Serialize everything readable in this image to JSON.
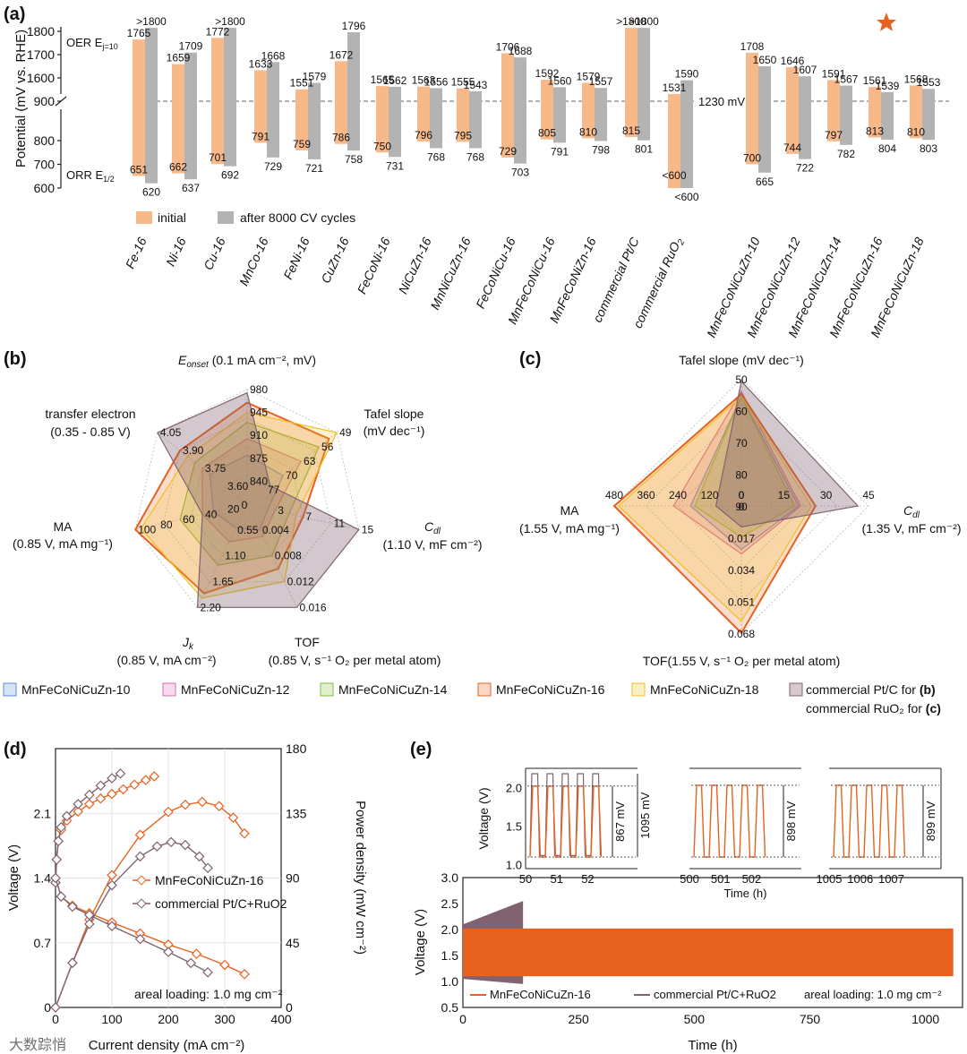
{
  "colors": {
    "initial": "#f8b98a",
    "after": "#b3b3b3",
    "orange": "#e8621f",
    "gray_series": "#806270",
    "pt_fill": "#d8c9cf",
    "cat10": "#5b8fd6",
    "cat12": "#d86fb0",
    "cat14": "#7fbf3f",
    "cat16": "#e8621f",
    "cat18": "#f0c020"
  },
  "panel_labels": {
    "a": "(a)",
    "b": "(b)",
    "c": "(c)",
    "d": "(d)",
    "e": "(e)"
  },
  "chart_data": [
    {
      "panel": "a",
      "type": "bar",
      "ylabel": "Potential (mV vs. RHE)",
      "yticks_oer": [
        "1800",
        "1700",
        "1600"
      ],
      "ytick_break": "900",
      "yticks_orr": [
        "800",
        "700",
        "600"
      ],
      "oer_label": "OER E",
      "oer_sub": "j=10",
      "orr_label": "ORR E",
      "orr_sub": "1/2",
      "ref_line_label": "1230 mV",
      "legend": {
        "initial": "initial",
        "after": "after 8000 CV cycles"
      },
      "categories": [
        "Fe-16",
        "Ni-16",
        "Cu-16",
        "MnCo-16",
        "FeNi-16",
        "CuZn-16",
        "FeCoNi-16",
        "NiCuZn-16",
        "MnNiCuZn-16",
        "FeCoNiCu-16",
        "MnFeCoNiCu-16",
        "MnFeCoNiZn-16",
        "commercial Pt/C",
        "commercial RuO2",
        "MnFeCoNiCuZn-10",
        "MnFeCoNiCuZn-12",
        "MnFeCoNiCuZn-14",
        "MnFeCoNiCuZn-16",
        "MnFeCoNiCuZn-18"
      ],
      "series": [
        {
          "name": "initial",
          "oer": [
            1765,
            1659,
            1772,
            1633,
            1551,
            1672,
            1565,
            1563,
            1555,
            1706,
            1592,
            1579,
            ">1800",
            1531,
            1708,
            1646,
            1591,
            1561,
            1568
          ],
          "orr": [
            651,
            662,
            701,
            791,
            759,
            786,
            750,
            796,
            795,
            729,
            805,
            810,
            815,
            "<600",
            700,
            744,
            797,
            813,
            810
          ]
        },
        {
          "name": "after 8000 CV cycles",
          "oer": [
            ">1800",
            1709,
            ">1800",
            1668,
            1579,
            1796,
            1562,
            1556,
            1543,
            1688,
            1560,
            1557,
            ">1800",
            1590,
            1650,
            1607,
            1567,
            1539,
            1553
          ],
          "orr": [
            620,
            637,
            692,
            729,
            721,
            758,
            731,
            768,
            768,
            703,
            791,
            798,
            801,
            "<600",
            665,
            722,
            782,
            804,
            803
          ]
        }
      ],
      "highlight": "MnFeCoNiCuZn-16"
    },
    {
      "panel": "b",
      "type": "radar",
      "axes": [
        {
          "label": "E",
          "label_sub": "onset",
          "label_rest": " (0.1 mA cm⁻², mV)",
          "ticks": [
            "840",
            "875",
            "910",
            "945",
            "980"
          ],
          "min": 805,
          "max": 980
        },
        {
          "label": "Tafel slope",
          "label2": "(mV dec⁻¹)",
          "ticks": [
            "77",
            "70",
            "63",
            "56",
            "49"
          ],
          "min": 84,
          "max": 49
        },
        {
          "label": "C",
          "label_sub": "dl",
          "label2": "(1.10 V, mF cm⁻²)",
          "ticks": [
            "3",
            "7",
            "11",
            "15"
          ],
          "min": -1,
          "max": 15
        },
        {
          "label": "TOF",
          "label2": "(0.85 V, s⁻¹ O₂ per metal atom)",
          "ticks": [
            "0.004",
            "0.008",
            "0.012",
            "0.016"
          ],
          "min": 0,
          "max": 0.016
        },
        {
          "label": "J",
          "label_sub": "k",
          "label2": "(0.85 V, mA cm⁻²)",
          "ticks": [
            "0.55",
            "1.10",
            "1.65",
            "2.20"
          ],
          "min": 0,
          "max": 2.2
        },
        {
          "label": "MA",
          "label2": "(0.85 V, mA mg⁻¹)",
          "ticks": [
            "20",
            "40",
            "60",
            "80",
            "100"
          ],
          "min": 0,
          "max": 100
        },
        {
          "label": "transfer electron",
          "label2": "(0.35 - 0.85 V)",
          "ticks": [
            "3.60",
            "3.75",
            "3.90",
            "4.05"
          ],
          "min": 3.45,
          "max": 4.05
        }
      ],
      "center_label": "0",
      "series": [
        {
          "name": "MnFeCoNiCuZn-10",
          "values": [
            880,
            70,
            2,
            0.004,
            0.5,
            30,
            3.7
          ]
        },
        {
          "name": "MnFeCoNiCuZn-12",
          "values": [
            905,
            63,
            3,
            0.005,
            0.8,
            40,
            3.75
          ]
        },
        {
          "name": "MnFeCoNiCuZn-14",
          "values": [
            930,
            56,
            5,
            0.008,
            1.3,
            60,
            3.8
          ]
        },
        {
          "name": "MnFeCoNiCuZn-16",
          "values": [
            960,
            52,
            7,
            0.01,
            1.9,
            100,
            3.9
          ]
        },
        {
          "name": "MnFeCoNiCuZn-18",
          "values": [
            945,
            49,
            6,
            0.012,
            2.0,
            95,
            3.85
          ]
        },
        {
          "name": "commercial Pt/C",
          "values": [
            975,
            75,
            15,
            0.016,
            2.2,
            40,
            4.05
          ]
        }
      ]
    },
    {
      "panel": "c",
      "type": "radar",
      "axes": [
        {
          "label": "Tafel slope (mV dec⁻¹)",
          "ticks": [
            "90",
            "80",
            "70",
            "60",
            "50"
          ],
          "min": 100,
          "max": 50
        },
        {
          "label": "C",
          "label_sub": "dl",
          "label2": "(1.35 V, mF cm⁻²)",
          "ticks": [
            "0",
            "15",
            "30",
            "45"
          ],
          "min": -15,
          "max": 45
        },
        {
          "label": "TOF(1.55 V, s⁻¹ O₂ per metal atom)",
          "ticks": [
            "0",
            "0.017",
            "0.034",
            "0.051",
            "0.068"
          ],
          "min": -0.017,
          "max": 0.068
        },
        {
          "label": "MA",
          "label2": "(1.55 V, mA mg⁻¹)",
          "ticks": [
            "0",
            "120",
            "240",
            "360",
            "480"
          ],
          "min": -120,
          "max": 480
        }
      ],
      "series": [
        {
          "name": "MnFeCoNiCuZn-10",
          "values": [
            57,
            12,
            0.012,
            120
          ]
        },
        {
          "name": "MnFeCoNiCuZn-12",
          "values": [
            55,
            13,
            0.015,
            200
          ]
        },
        {
          "name": "MnFeCoNiCuZn-14",
          "values": [
            57,
            10,
            0.004,
            100
          ]
        },
        {
          "name": "MnFeCoNiCuZn-16",
          "values": [
            56,
            20,
            0.068,
            480
          ]
        },
        {
          "name": "MnFeCoNiCuZn-18",
          "values": [
            57,
            18,
            0.06,
            460
          ]
        },
        {
          "name": "commercial RuO2",
          "values": [
            51,
            40,
            -0.003,
            0
          ]
        }
      ]
    },
    {
      "panel": "d",
      "type": "line",
      "xlabel": "Current density (mA cm⁻²)",
      "ylabel": "Voltage (V)",
      "y2label": "Power density (mW cm⁻²)",
      "xlim": [
        0,
        400
      ],
      "ylim": [
        0,
        2.8
      ],
      "y2lim": [
        0,
        180
      ],
      "xticks": [
        "0",
        "100",
        "200",
        "300",
        "400"
      ],
      "yticks": [
        "0",
        "0.7",
        "1.4",
        "2.1"
      ],
      "y2ticks": [
        "0",
        "45",
        "90",
        "135",
        "180"
      ],
      "annotation": "areal loading: 1.0 mg cm⁻²",
      "series": [
        {
          "name": "MnFeCoNiCuZn-16",
          "charge": [
            [
              0,
              1.35
            ],
            [
              2,
              1.6
            ],
            [
              5,
              1.8
            ],
            [
              10,
              1.92
            ],
            [
              20,
              2.02
            ],
            [
              40,
              2.12
            ],
            [
              60,
              2.2
            ],
            [
              80,
              2.26
            ],
            [
              100,
              2.31
            ],
            [
              120,
              2.36
            ],
            [
              140,
              2.41
            ],
            [
              160,
              2.46
            ],
            [
              175,
              2.5
            ]
          ],
          "discharge": [
            [
              0,
              1.4
            ],
            [
              10,
              1.2
            ],
            [
              30,
              1.1
            ],
            [
              60,
              1.02
            ],
            [
              100,
              0.92
            ],
            [
              150,
              0.8
            ],
            [
              200,
              0.68
            ],
            [
              250,
              0.58
            ],
            [
              300,
              0.46
            ],
            [
              335,
              0.36
            ]
          ],
          "power": [
            [
              0,
              0
            ],
            [
              30,
              31
            ],
            [
              60,
              61
            ],
            [
              100,
              92
            ],
            [
              150,
              120
            ],
            [
              200,
              136
            ],
            [
              230,
              141
            ],
            [
              260,
              143
            ],
            [
              290,
              140
            ],
            [
              315,
              132
            ],
            [
              335,
              121
            ]
          ]
        },
        {
          "name": "commercial Pt/C+RuO2",
          "charge": [
            [
              0,
              1.35
            ],
            [
              2,
              1.6
            ],
            [
              5,
              1.8
            ],
            [
              10,
              1.95
            ],
            [
              20,
              2.07
            ],
            [
              40,
              2.2
            ],
            [
              60,
              2.3
            ],
            [
              80,
              2.4
            ],
            [
              100,
              2.48
            ],
            [
              115,
              2.53
            ]
          ],
          "discharge": [
            [
              0,
              1.4
            ],
            [
              10,
              1.2
            ],
            [
              30,
              1.09
            ],
            [
              60,
              1.0
            ],
            [
              100,
              0.88
            ],
            [
              150,
              0.74
            ],
            [
              200,
              0.6
            ],
            [
              240,
              0.48
            ],
            [
              270,
              0.38
            ]
          ],
          "power": [
            [
              0,
              0
            ],
            [
              30,
              31
            ],
            [
              60,
              58
            ],
            [
              100,
              85
            ],
            [
              150,
              105
            ],
            [
              180,
              112
            ],
            [
              205,
              115
            ],
            [
              230,
              113
            ],
            [
              255,
              105
            ],
            [
              270,
              97
            ]
          ]
        }
      ]
    },
    {
      "panel": "e",
      "type": "line",
      "xlabel": "Time (h)",
      "ylabel": "Voltage (V)",
      "xlim": [
        0,
        1080
      ],
      "ylim": [
        0.5,
        3.0
      ],
      "xticks": [
        "0",
        "250",
        "500",
        "750",
        "1000"
      ],
      "yticks": [
        "0.5",
        "1.0",
        "1.5",
        "2.0",
        "2.5",
        "3.0"
      ],
      "legend": [
        "MnFeCoNiCuZn-16",
        "commercial Pt/C+RuO2"
      ],
      "annotation": "areal loading: 1.0 mg cm⁻²",
      "series": [
        {
          "name": "MnFeCoNiCuZn-16",
          "x_end": 1060,
          "upper": 2.02,
          "lower": 1.1
        },
        {
          "name": "commercial Pt/C+RuO2",
          "x_end": 130,
          "upper_start": 2.1,
          "upper_end": 2.55,
          "lower_start": 1.05,
          "lower_end": 0.95
        }
      ],
      "insets": [
        {
          "xticks": [
            "50",
            "51",
            "52"
          ],
          "ylabel": "Voltage (V)",
          "yticks": [
            "1.0",
            "1.5",
            "2.0"
          ],
          "gaps": [
            "867 mV",
            "1095 mV"
          ]
        },
        {
          "xticks": [
            "500",
            "501",
            "502"
          ],
          "xlabel": "Time (h)",
          "gaps": [
            "898 mV"
          ]
        },
        {
          "xticks": [
            "1005",
            "1006",
            "1007"
          ],
          "gaps": [
            "899 mV"
          ]
        }
      ]
    }
  ],
  "legend_bc": {
    "items": [
      "MnFeCoNiCuZn-10",
      "MnFeCoNiCuZn-12",
      "MnFeCoNiCuZn-14",
      "MnFeCoNiCuZn-16",
      "MnFeCoNiCuZn-18"
    ],
    "ref_b": "commercial Pt/C for ",
    "ref_b_bold": "(b)",
    "ref_c": "commercial RuO₂ for ",
    "ref_c_bold": "(c)"
  },
  "watermark": "大数踪悄"
}
